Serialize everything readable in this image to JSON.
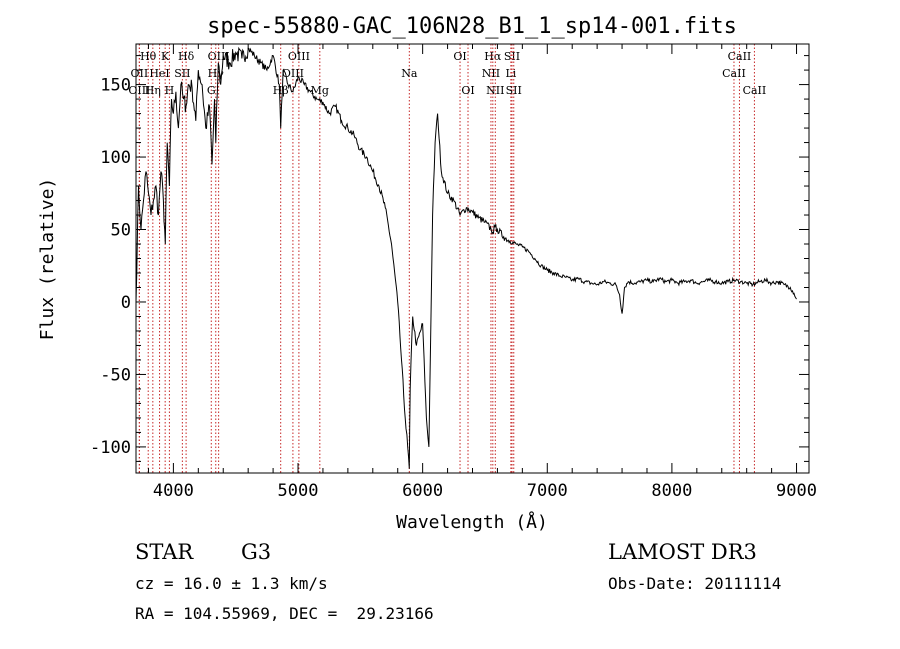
{
  "chart_data": {
    "type": "line",
    "title": "spec-55880-GAC_106N28_B1_1_sp14-001.fits",
    "xlabel": "Wavelength (Å)",
    "ylabel": "Flux (relative)",
    "xlim": [
      3700,
      9100
    ],
    "ylim": [
      -118,
      178
    ],
    "x_ticks": [
      4000,
      5000,
      6000,
      7000,
      8000,
      9000
    ],
    "y_ticks": [
      -100,
      -50,
      0,
      50,
      100,
      150
    ],
    "grid": false,
    "series": [
      {
        "name": "spectrum",
        "x": [
          3700,
          3720,
          3740,
          3760,
          3780,
          3800,
          3820,
          3840,
          3860,
          3880,
          3900,
          3920,
          3935,
          3950,
          3968,
          3985,
          4000,
          4020,
          4040,
          4060,
          4080,
          4101,
          4120,
          4150,
          4180,
          4200,
          4230,
          4260,
          4290,
          4310,
          4330,
          4340,
          4360,
          4380,
          4400,
          4450,
          4500,
          4550,
          4600,
          4650,
          4700,
          4750,
          4800,
          4850,
          4861,
          4880,
          4920,
          4960,
          5000,
          5050,
          5100,
          5150,
          5200,
          5250,
          5300,
          5350,
          5400,
          5450,
          5500,
          5550,
          5600,
          5650,
          5700,
          5750,
          5800,
          5830,
          5860,
          5880,
          5893,
          5900,
          5920,
          5950,
          6000,
          6030,
          6050,
          6080,
          6100,
          6120,
          6150,
          6200,
          6250,
          6300,
          6350,
          6400,
          6450,
          6500,
          6550,
          6563,
          6580,
          6600,
          6650,
          6700,
          6750,
          6800,
          6850,
          6900,
          6950,
          7000,
          7050,
          7100,
          7150,
          7200,
          7250,
          7300,
          7350,
          7400,
          7450,
          7500,
          7550,
          7580,
          7600,
          7620,
          7650,
          7700,
          7750,
          7800,
          7850,
          7900,
          7950,
          8000,
          8050,
          8100,
          8150,
          8200,
          8250,
          8300,
          8350,
          8400,
          8450,
          8500,
          8550,
          8600,
          8650,
          8700,
          8750,
          8800,
          8850,
          8900,
          8950,
          8980,
          9000
        ],
        "values": [
          0,
          80,
          50,
          70,
          90,
          75,
          60,
          70,
          80,
          60,
          90,
          70,
          40,
          110,
          80,
          140,
          130,
          145,
          120,
          150,
          140,
          135,
          150,
          148,
          125,
          160,
          150,
          120,
          135,
          95,
          140,
          110,
          165,
          150,
          170,
          165,
          172,
          168,
          175,
          170,
          165,
          160,
          170,
          150,
          120,
          160,
          150,
          145,
          155,
          150,
          145,
          140,
          138,
          130,
          135,
          125,
          120,
          115,
          105,
          100,
          90,
          80,
          65,
          40,
          0,
          -40,
          -80,
          -100,
          -115,
          -60,
          -10,
          -30,
          -15,
          -80,
          -100,
          60,
          110,
          130,
          90,
          75,
          70,
          60,
          65,
          62,
          58,
          55,
          50,
          48,
          52,
          50,
          45,
          42,
          40,
          38,
          35,
          30,
          25,
          22,
          20,
          18,
          17,
          15,
          16,
          14,
          13,
          12,
          14,
          13,
          12,
          5,
          -8,
          10,
          14,
          13,
          14,
          15,
          14,
          16,
          14,
          15,
          13,
          14,
          15,
          13,
          14,
          15,
          14,
          13,
          14,
          15,
          14,
          13,
          12,
          14,
          15,
          13,
          14,
          12,
          10,
          6,
          2
        ]
      }
    ],
    "spectral_lines": [
      {
        "label": "Hθ",
        "x": 3798,
        "row": 1
      },
      {
        "label": "OII",
        "x": 3727,
        "row": 2
      },
      {
        "label": "OIII",
        "x": 3727,
        "row": 3
      },
      {
        "label": "K",
        "x": 3934,
        "row": 1
      },
      {
        "label": "HeI",
        "x": 3889,
        "row": 2
      },
      {
        "label": "Hη",
        "x": 3835,
        "row": 3
      },
      {
        "label": "SII",
        "x": 4072,
        "row": 2
      },
      {
        "label": "H",
        "x": 3968,
        "row": 3
      },
      {
        "label": "Hδ",
        "x": 4102,
        "row": 1
      },
      {
        "label": "OIII",
        "x": 4363,
        "row": 1
      },
      {
        "label": "Hγ",
        "x": 4340,
        "row": 2
      },
      {
        "label": "G",
        "x": 4304,
        "row": 3
      },
      {
        "label": "OIII",
        "x": 5007,
        "row": 1
      },
      {
        "label": "OIII",
        "x": 4959,
        "row": 2
      },
      {
        "label": "Hβ",
        "x": 4861,
        "row": 3
      },
      {
        "label": "Mg",
        "x": 5175,
        "row": 3
      },
      {
        "label": "Na",
        "x": 5893,
        "row": 2
      },
      {
        "label": "OI",
        "x": 6300,
        "row": 1
      },
      {
        "label": "OI",
        "x": 6364,
        "row": 3
      },
      {
        "label": "Hα",
        "x": 6563,
        "row": 1
      },
      {
        "label": "NII",
        "x": 6548,
        "row": 2
      },
      {
        "label": "NII",
        "x": 6583,
        "row": 3
      },
      {
        "label": "SII",
        "x": 6717,
        "row": 1
      },
      {
        "label": "Li",
        "x": 6708,
        "row": 2
      },
      {
        "label": "SII",
        "x": 6731,
        "row": 3
      },
      {
        "label": "CaII",
        "x": 8542,
        "row": 1
      },
      {
        "label": "CaII",
        "x": 8498,
        "row": 2
      },
      {
        "label": "CaII",
        "x": 8662,
        "row": 3
      }
    ]
  },
  "info": {
    "object_class": "STAR",
    "subclass": "G3",
    "survey": "LAMOST DR3",
    "cz": "cz = 16.0 ± 1.3 km/s",
    "obs_date": "Obs-Date: 20111114",
    "coords": "RA = 104.55969, DEC =  29.23166"
  }
}
